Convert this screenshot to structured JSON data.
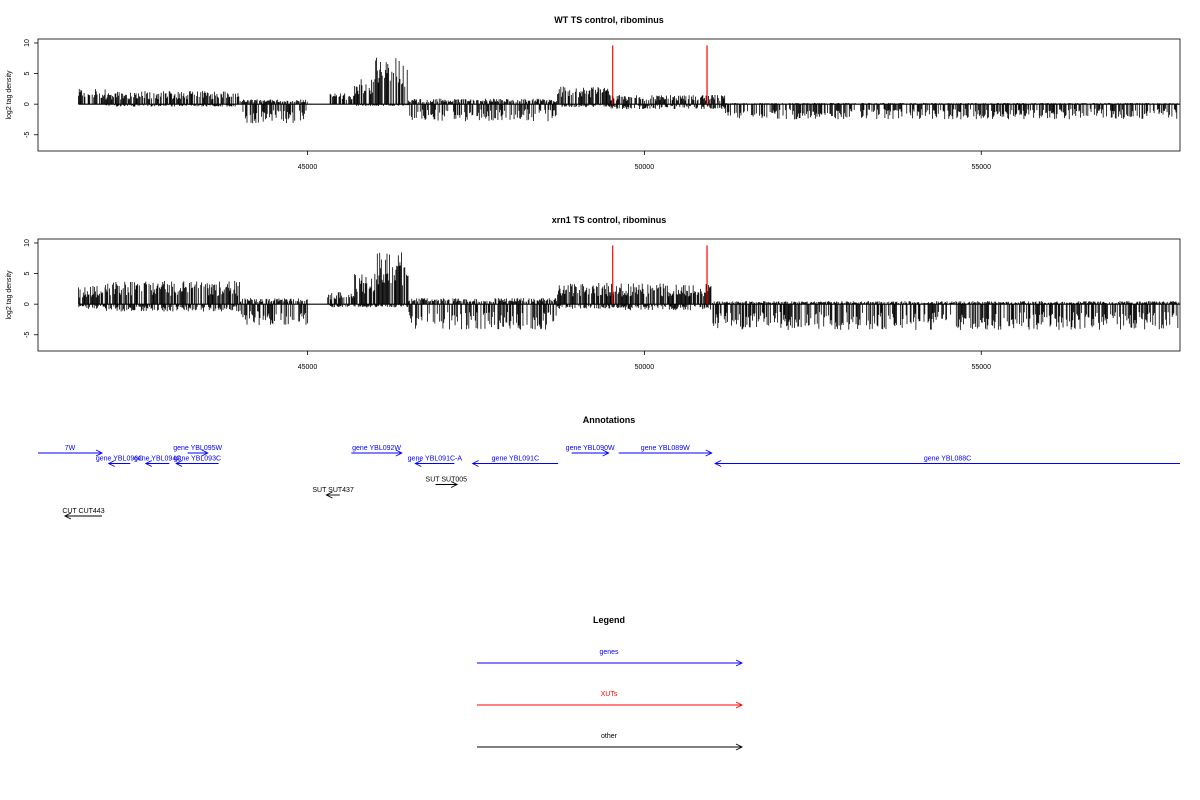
{
  "chart_data": [
    {
      "type": "bar",
      "title": "WT TS control, ribominus",
      "ylabel": "log2 tag density",
      "xlabel": "",
      "xlim": [
        41000,
        57950
      ],
      "ylim": [
        -7,
        10
      ],
      "xticks": [
        45000,
        50000,
        55000
      ],
      "yticks": [
        -5,
        0,
        5,
        10
      ],
      "data_range": [
        41600,
        57950
      ],
      "clusters": [
        {
          "x": [
            41600,
            42000
          ],
          "pos": 2.5,
          "neg": 0
        },
        {
          "x": [
            42000,
            44000
          ],
          "pos": 2.2,
          "neg": 0.4
        },
        {
          "x": [
            44000,
            45000
          ],
          "pos": 0.8,
          "neg": 3.2
        },
        {
          "x": [
            45300,
            45700
          ],
          "pos": 1.8,
          "neg": 0
        },
        {
          "x": [
            45700,
            46000
          ],
          "pos": 4.5,
          "neg": 0.3
        },
        {
          "x": [
            46000,
            46500
          ],
          "pos": 8.0,
          "neg": 0.3
        },
        {
          "x": [
            46500,
            48700
          ],
          "pos": 0.9,
          "neg": 2.8
        },
        {
          "x": [
            48700,
            49500
          ],
          "pos": 3.0,
          "neg": 0.5
        },
        {
          "x": [
            49500,
            51200
          ],
          "pos": 1.5,
          "neg": 0.8
        },
        {
          "x": [
            51200,
            57950
          ],
          "pos": 0.2,
          "neg": 2.5
        }
      ],
      "xut_marks": [
        49530,
        50930
      ]
    },
    {
      "type": "bar",
      "title": "xrn1 TS control, ribominus",
      "ylabel": "log2 tag density",
      "xlabel": "",
      "xlim": [
        41000,
        57950
      ],
      "ylim": [
        -7,
        10
      ],
      "xticks": [
        45000,
        50000,
        55000
      ],
      "yticks": [
        -5,
        0,
        5,
        10
      ],
      "data_range": [
        41600,
        57950
      ],
      "clusters": [
        {
          "x": [
            41600,
            42000
          ],
          "pos": 3.0,
          "neg": 0.8
        },
        {
          "x": [
            42000,
            44000
          ],
          "pos": 3.8,
          "neg": 1.2
        },
        {
          "x": [
            44000,
            45000
          ],
          "pos": 1.0,
          "neg": 3.5
        },
        {
          "x": [
            45300,
            45700
          ],
          "pos": 2.0,
          "neg": 0.5
        },
        {
          "x": [
            45700,
            46000
          ],
          "pos": 5.0,
          "neg": 0.5
        },
        {
          "x": [
            46000,
            46500
          ],
          "pos": 8.5,
          "neg": 0.5
        },
        {
          "x": [
            46500,
            48700
          ],
          "pos": 1.0,
          "neg": 4.2
        },
        {
          "x": [
            48700,
            49500
          ],
          "pos": 3.5,
          "neg": 0.8
        },
        {
          "x": [
            49500,
            51000
          ],
          "pos": 3.5,
          "neg": 1.0
        },
        {
          "x": [
            51000,
            57950
          ],
          "pos": 0.5,
          "neg": 4.2
        }
      ],
      "xut_marks": [
        49530,
        50930
      ]
    }
  ],
  "annotations": {
    "title": "Annotations",
    "items": [
      {
        "label": "7W",
        "start": 41000,
        "end": 41950,
        "strand": "+",
        "color": "#0000ff",
        "row": 0
      },
      {
        "label": "gene YBL095W",
        "start": 43220,
        "end": 43520,
        "strand": "+",
        "color": "#0000ff",
        "row": 0
      },
      {
        "label": "gene YBL096C",
        "start": 42050,
        "end": 42370,
        "strand": "-",
        "color": "#0000ff",
        "row": 1
      },
      {
        "label": "gene YBL094C",
        "start": 42600,
        "end": 42950,
        "strand": "-",
        "color": "#0000ff",
        "row": 1
      },
      {
        "label": "gene YBL093C",
        "start": 43050,
        "end": 43680,
        "strand": "-",
        "color": "#0000ff",
        "row": 1
      },
      {
        "label": "gene YBL092W",
        "start": 45650,
        "end": 46400,
        "strand": "+",
        "color": "#0000ff",
        "row": 0
      },
      {
        "label": "gene YBL091C-A",
        "start": 46600,
        "end": 47180,
        "strand": "-",
        "color": "#0000ff",
        "row": 1
      },
      {
        "label": "gene YBL091C",
        "start": 47450,
        "end": 48720,
        "strand": "-",
        "color": "#0000ff",
        "row": 1
      },
      {
        "label": "gene YBL090W",
        "start": 48920,
        "end": 49470,
        "strand": "+",
        "color": "#0000ff",
        "row": 0
      },
      {
        "label": "gene YBL089W",
        "start": 49620,
        "end": 51000,
        "strand": "+",
        "color": "#0000ff",
        "row": 0
      },
      {
        "label": "gene YBL088C",
        "start": 51050,
        "end": 57950,
        "strand": "-",
        "color": "#0000ff",
        "row": 1
      },
      {
        "label": "SUT SUT437",
        "start": 45280,
        "end": 45480,
        "strand": "-",
        "color": "#000000",
        "row": 4
      },
      {
        "label": "SUT SUT005",
        "start": 46900,
        "end": 47220,
        "strand": "+",
        "color": "#000000",
        "row": 3
      },
      {
        "label": "CUT CUT443",
        "start": 41400,
        "end": 41950,
        "strand": "-",
        "color": "#000000",
        "row": 6
      }
    ]
  },
  "legend": {
    "title": "Legend",
    "items": [
      {
        "label": "genes",
        "color": "#0000ff"
      },
      {
        "label": "XUTs",
        "color": "#ff0000"
      },
      {
        "label": "other",
        "color": "#000000"
      }
    ]
  }
}
